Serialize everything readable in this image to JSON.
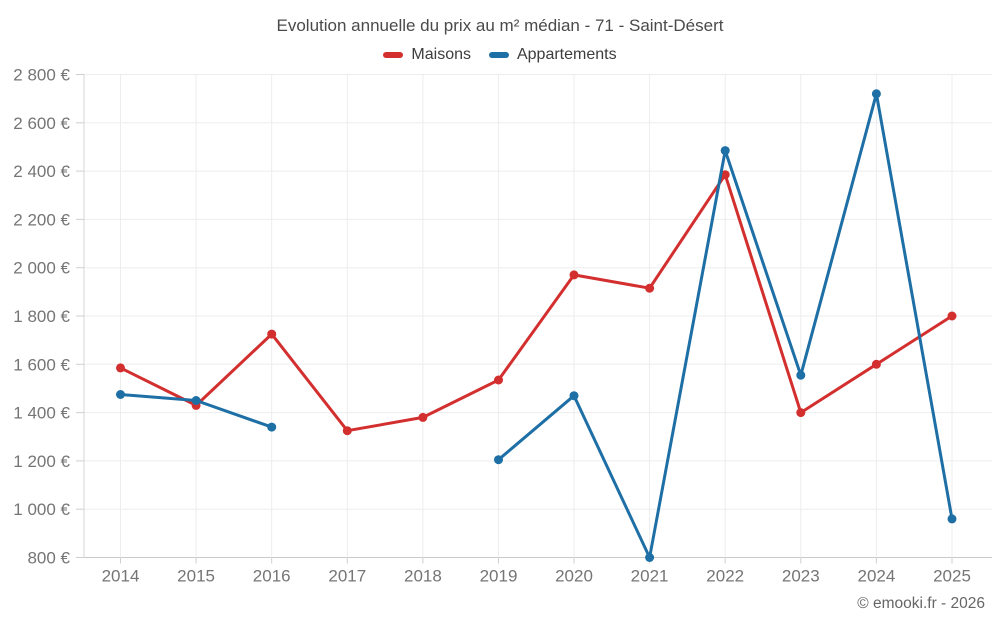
{
  "header": {
    "title": "Evolution annuelle du prix au m² médian - 71 - Saint-Désert"
  },
  "footer": {
    "watermark": "© emooki.fr - 2026"
  },
  "chart_data": {
    "type": "line",
    "title": "Evolution annuelle du prix au m² médian - 71 - Saint-Désert",
    "categories": [
      "2014",
      "2015",
      "2016",
      "2017",
      "2018",
      "2019",
      "2020",
      "2021",
      "2022",
      "2023",
      "2024",
      "2025"
    ],
    "series": [
      {
        "name": "Maisons",
        "color": "#d32f2f",
        "values": [
          1585,
          1430,
          1725,
          1325,
          1380,
          1535,
          1970,
          1915,
          2385,
          1400,
          1600,
          1800
        ]
      },
      {
        "name": "Appartements",
        "color": "#1d6fa5",
        "values": [
          1475,
          1450,
          1340,
          null,
          null,
          1205,
          1470,
          800,
          2485,
          1555,
          2720,
          960
        ]
      }
    ],
    "xlabel": "",
    "ylabel": "",
    "ylim": [
      800,
      2800
    ],
    "ytick_step": 200,
    "ytick_labels": [
      "800 €",
      "1 000 €",
      "1 200 €",
      "1 400 €",
      "1 600 €",
      "1 800 €",
      "2 000 €",
      "2 200 €",
      "2 400 €",
      "2 600 €",
      "2 800 €"
    ],
    "grid": true,
    "legend_position": "top",
    "grid_color": "#ededed",
    "axis_color": "#c9c9c9",
    "tick_color": "#cfcfcf",
    "tick_label_color": "#757575"
  }
}
